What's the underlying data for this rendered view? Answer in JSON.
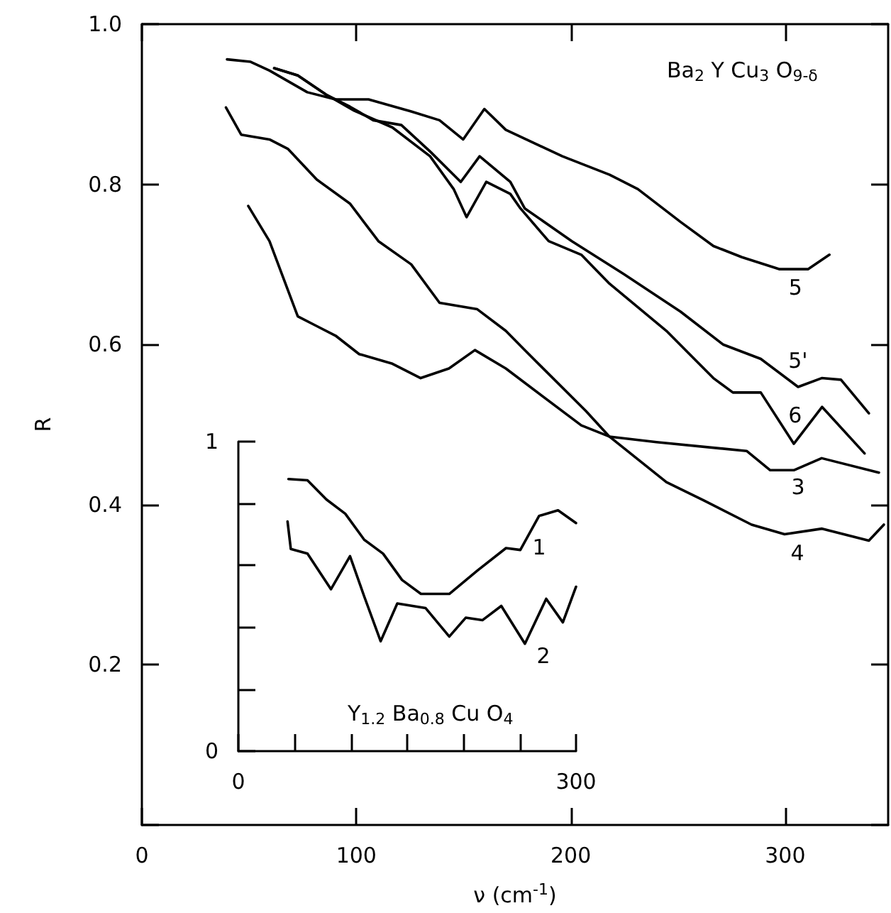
{
  "chart_data": [
    {
      "type": "line",
      "xlabel": "ν (cm$^{-1}$)",
      "ylabel": "R",
      "xlim": [
        0,
        348
      ],
      "ylim": [
        0,
        1
      ],
      "xticks": [
        0,
        100,
        200,
        300
      ],
      "yticks": [
        {
          "value": 0,
          "label": null
        },
        0.2,
        0.4,
        0.6,
        0.8,
        {
          "value": 1,
          "label": "1.0"
        }
      ],
      "grid": false,
      "legend": false,
      "marker": "none",
      "line_style": "solid",
      "annotations": [
        "Ba$_{2}$ Y Cu$_{3}$ O$_{9-δ}$"
      ],
      "series": [
        {
          "name": "5",
          "color": "#000000",
          "x": [
            39.7,
            50.7,
            59.5,
            77.1,
            90.3,
            105.7,
            125.6,
            138.8,
            149.8,
            159.7,
            169.7,
            196.1,
            218.1,
            231.3,
            251.2,
            266.5,
            279.8,
            297.4,
            310.6,
            320.6
          ],
          "values": [
            0.956,
            0.953,
            0.942,
            0.915,
            0.906,
            0.906,
            0.891,
            0.88,
            0.856,
            0.894,
            0.868,
            0.835,
            0.812,
            0.794,
            0.753,
            0.723,
            0.709,
            0.694,
            0.694,
            0.712
          ]
        },
        {
          "name": "5'",
          "color": "#000000",
          "x": [
            61.7,
            72.7,
            85.9,
            97,
            107.9,
            121,
            134.4,
            148.7,
            157.5,
            171.8,
            178.5,
            200.5,
            224.7,
            251.2,
            271,
            288.6,
            306,
            317,
            326,
            339
          ],
          "values": [
            0.945,
            0.936,
            0.912,
            0.897,
            0.88,
            0.874,
            0.841,
            0.803,
            0.835,
            0.803,
            0.77,
            0.729,
            0.688,
            0.641,
            0.6,
            0.582,
            0.547,
            0.558,
            0.556,
            0.514
          ]
        },
        {
          "name": "6",
          "color": "#000000",
          "x": [
            61.7,
            72.7,
            85.9,
            99,
            116.8,
            134.4,
            145.4,
            151.4,
            160.6,
            171.8,
            176.5,
            189.7,
            204.9,
            218,
            244.6,
            266.5,
            275.6,
            288.6,
            304,
            317.2,
            337
          ],
          "values": [
            0.945,
            0.936,
            0.912,
            0.892,
            0.871,
            0.835,
            0.794,
            0.759,
            0.803,
            0.788,
            0.77,
            0.729,
            0.712,
            0.676,
            0.617,
            0.558,
            0.54,
            0.54,
            0.476,
            0.522,
            0.464
          ]
        },
        {
          "name": "3",
          "color": "#000000",
          "x": [
            49.6,
            59.5,
            66.1,
            72.7,
            81.5,
            90.3,
            101.3,
            116.8,
            130,
            143.2,
            155.3,
            169.7,
            204.9,
            218,
            240,
            282,
            293,
            304,
            317,
            343.7
          ],
          "values": [
            0.773,
            0.729,
            0.682,
            0.635,
            0.623,
            0.611,
            0.588,
            0.576,
            0.558,
            0.57,
            0.593,
            0.57,
            0.499,
            0.485,
            0.478,
            0.467,
            0.443,
            0.443,
            0.458,
            0.44
          ]
        },
        {
          "name": "4",
          "color": "#000000",
          "x": [
            39.2,
            46.3,
            59.5,
            68.2,
            81.5,
            97,
            110.3,
            125.6,
            138.8,
            156.4,
            169.7,
            178.5,
            207,
            218,
            244.6,
            262.2,
            284.3,
            299.7,
            317.2,
            339,
            346
          ],
          "values": [
            0.896,
            0.862,
            0.856,
            0.844,
            0.806,
            0.776,
            0.729,
            0.7,
            0.652,
            0.644,
            0.617,
            0.593,
            0.517,
            0.485,
            0.428,
            0.405,
            0.375,
            0.363,
            0.37,
            0.355,
            0.375
          ]
        }
      ]
    },
    {
      "type": "line",
      "xlim": [
        0,
        300
      ],
      "ylim": [
        0,
        1
      ],
      "xticks": [
        0,
        {
          "value": 50,
          "label": null
        },
        {
          "value": 100,
          "label": null
        },
        {
          "value": 150,
          "label": null
        },
        {
          "value": 200,
          "label": null
        },
        {
          "value": 250,
          "label": null
        },
        300
      ],
      "yticks": [
        0,
        {
          "value": 0.2,
          "label": null
        },
        {
          "value": 0.4,
          "label": null
        },
        {
          "value": 0.6,
          "label": null
        },
        {
          "value": 0.8,
          "label": null
        },
        1
      ],
      "grid": false,
      "legend": false,
      "marker": "none",
      "line_style": "solid",
      "annotations": [
        "Y$_{1.2}$ Ba$_{0.8}$ Cu O$_{4}$"
      ],
      "series": [
        {
          "name": "1",
          "color": "#000000",
          "x": [
            44.5,
            61.4,
            78.2,
            95,
            111.8,
            128.6,
            145.4,
            162.2,
            187.4,
            212.6,
            237.8,
            250.5,
            267.2,
            284,
            300
          ],
          "values": [
            0.879,
            0.875,
            0.813,
            0.767,
            0.683,
            0.638,
            0.553,
            0.508,
            0.508,
            0.584,
            0.656,
            0.65,
            0.76,
            0.778,
            0.737
          ]
        },
        {
          "name": "2",
          "color": "#000000",
          "x": [
            43.7,
            46.6,
            61.4,
            82.3,
            99.2,
            111.8,
            126.4,
            141.2,
            166.4,
            187.4,
            202,
            216.8,
            233.6,
            254.6,
            273.5,
            288.3,
            300
          ],
          "values": [
            0.742,
            0.653,
            0.638,
            0.523,
            0.63,
            0.5,
            0.355,
            0.477,
            0.462,
            0.37,
            0.431,
            0.423,
            0.469,
            0.347,
            0.492,
            0.416,
            0.531
          ]
        }
      ]
    }
  ]
}
